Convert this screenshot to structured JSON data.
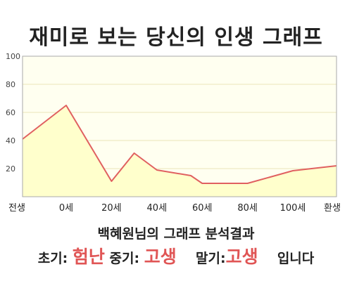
{
  "page": {
    "title": "재미로 보는 당신의 인생 그래프"
  },
  "chart_data": {
    "type": "area",
    "title": "재미로 보는 당신의 인생 그래프",
    "ylim": [
      0,
      100
    ],
    "yticks": [
      "20",
      "40",
      "60",
      "80",
      "100"
    ],
    "xticklabels": [
      "전생",
      "0세",
      "20세",
      "40세",
      "60세",
      "80세",
      "100세",
      "환생"
    ],
    "series": [
      {
        "values": [
          {
            "x": "전생",
            "y": 41
          },
          {
            "x": "0세",
            "y": 65
          },
          {
            "x": "20세",
            "y": 11
          },
          {
            "x": "30세",
            "y": 31
          },
          {
            "x": "40세",
            "y": 19
          },
          {
            "x": "55세",
            "y": 15
          },
          {
            "x": "60세",
            "y": 9.5
          },
          {
            "x": "80세",
            "y": 9.5
          },
          {
            "x": "100세",
            "y": 18.5
          },
          {
            "x": "환생",
            "y": 22
          }
        ]
      }
    ],
    "grid": true,
    "colors": {
      "fill": "#ffffcc",
      "line": "#e06060",
      "plot_bg": "#fffff0",
      "grid": "#ebe6b8"
    }
  },
  "result": {
    "subtitle": "백혜원님의 그래프 분석결과",
    "early_label": "초기:",
    "early_value": "험난",
    "mid_label": "중기:",
    "mid_value": "고생",
    "late_label": "말기:",
    "late_value": "고생",
    "ending": "입니다"
  }
}
